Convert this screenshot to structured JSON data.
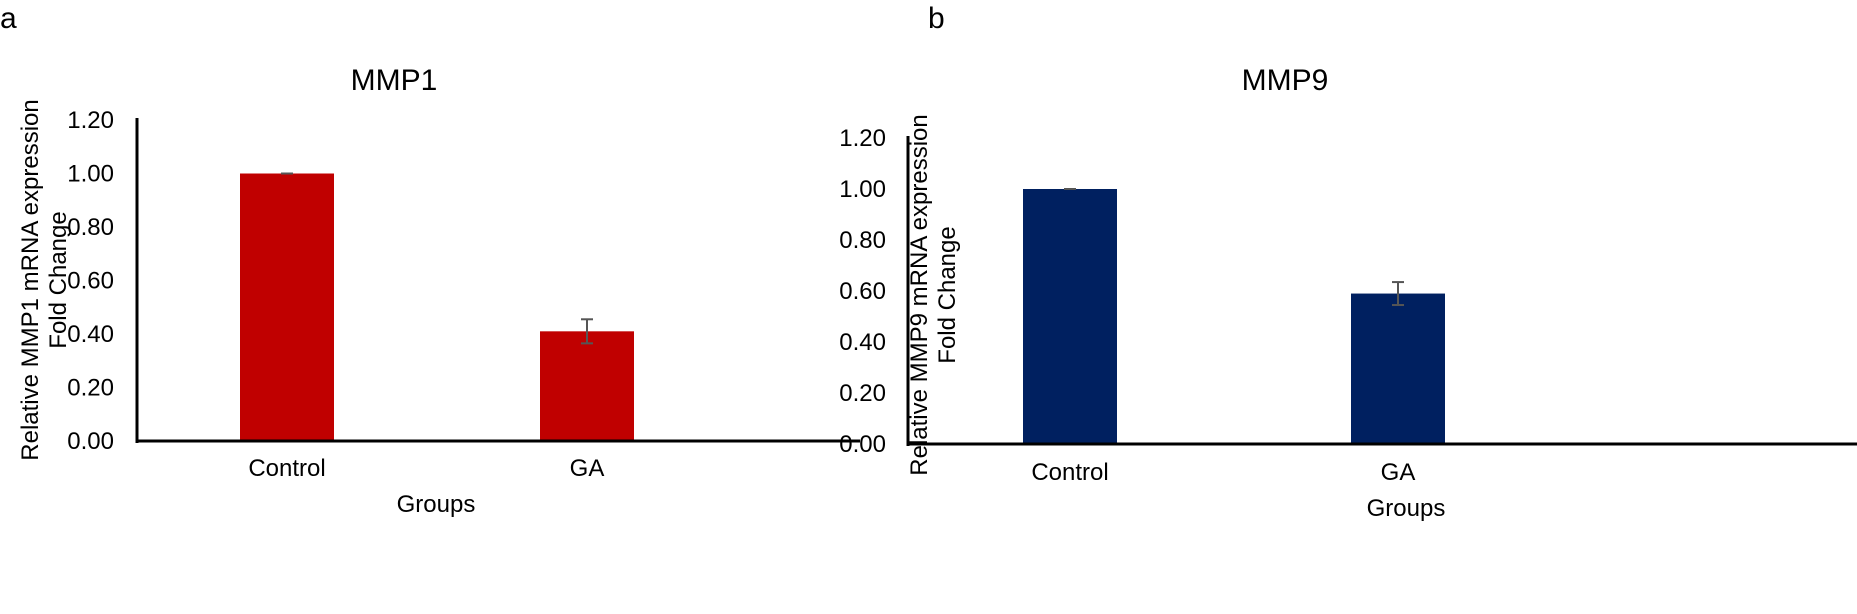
{
  "chart_data": [
    {
      "panel": "a",
      "type": "bar",
      "title": "MMP1",
      "categories": [
        "Control",
        "GA"
      ],
      "values": [
        1.0,
        0.41
      ],
      "errors": [
        0.0,
        0.045
      ],
      "ylabel_lines": [
        "Relative MMP1  mRNA expression",
        "Fold Change"
      ],
      "xlabel": "Groups",
      "ylim": [
        0,
        1.2
      ],
      "yticks": [
        "0.00",
        "0.20",
        "0.40",
        "0.60",
        "0.80",
        "1.00",
        "1.20"
      ],
      "bar_color": "#c00000",
      "grid": false
    },
    {
      "panel": "b",
      "type": "bar",
      "title": "MMP9",
      "categories": [
        "Control",
        "GA"
      ],
      "values": [
        1.0,
        0.59
      ],
      "errors": [
        0.0,
        0.045
      ],
      "ylabel_lines": [
        "Relative MMP9  mRNA  expression",
        "Fold Change"
      ],
      "xlabel": "Groups",
      "ylim": [
        0,
        1.2
      ],
      "yticks": [
        "0.00",
        "0.20",
        "0.40",
        "0.60",
        "0.80",
        "1.00",
        "1.20"
      ],
      "bar_color": "#002060",
      "grid": false
    }
  ]
}
